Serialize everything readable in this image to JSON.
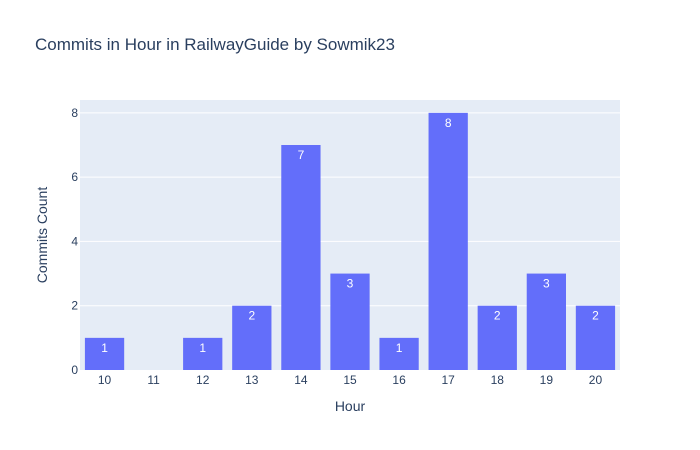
{
  "chart_data": {
    "type": "bar",
    "title": "Commits in Hour in RailwayGuide by Sowmik23",
    "xlabel": "Hour",
    "ylabel": "Commits Count",
    "categories": [
      "10",
      "11",
      "12",
      "13",
      "14",
      "15",
      "16",
      "17",
      "18",
      "19",
      "20"
    ],
    "values": [
      1,
      0,
      1,
      2,
      7,
      3,
      1,
      8,
      2,
      3,
      2
    ],
    "data_labels": [
      "1",
      "",
      "1",
      "2",
      "7",
      "3",
      "1",
      "8",
      "2",
      "3",
      "2"
    ],
    "ylim": [
      0,
      8.4
    ],
    "y_ticks": [
      0,
      2,
      4,
      6,
      8
    ],
    "y_tick_labels": [
      "0",
      "2",
      "4",
      "6",
      "8"
    ],
    "grid": true,
    "legend": "none",
    "colors": {
      "bar": "#636efa",
      "plot_background": "#e5ecf6",
      "text": "#2a3f5f",
      "gridline": "#ffffff"
    }
  }
}
